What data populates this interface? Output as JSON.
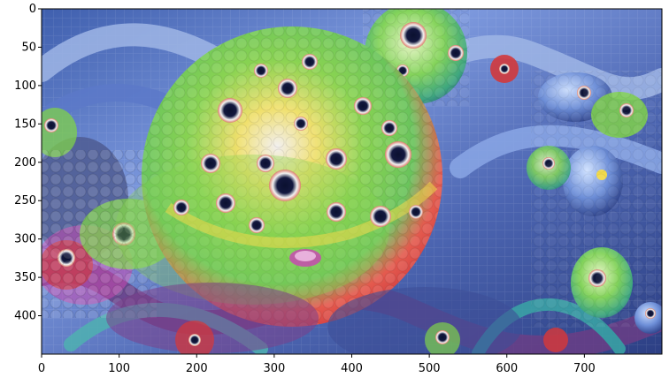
{
  "figure": {
    "image_description_icon": "deep-dream-image",
    "background": "#ffffff",
    "palette": {
      "blue_bg": "#4f6fb8",
      "light_blue": "#9fb6e6",
      "deep_blue": "#24356e",
      "green": "#7fd14a",
      "yellow": "#f1d94a",
      "red": "#d1383c",
      "magenta": "#c84ab0",
      "teal": "#3fb7b3"
    }
  },
  "axes": {
    "xlim": [
      0,
      800
    ],
    "ylim": [
      450,
      0
    ],
    "x_ticks": [
      {
        "value": 0,
        "label": "0"
      },
      {
        "value": 100,
        "label": "100"
      },
      {
        "value": 200,
        "label": "200"
      },
      {
        "value": 300,
        "label": "300"
      },
      {
        "value": 400,
        "label": "400"
      },
      {
        "value": 500,
        "label": "500"
      },
      {
        "value": 600,
        "label": "600"
      },
      {
        "value": 700,
        "label": "700"
      }
    ],
    "y_ticks": [
      {
        "value": 0,
        "label": "0"
      },
      {
        "value": 50,
        "label": "50"
      },
      {
        "value": 100,
        "label": "100"
      },
      {
        "value": 150,
        "label": "150"
      },
      {
        "value": 200,
        "label": "200"
      },
      {
        "value": 250,
        "label": "250"
      },
      {
        "value": 300,
        "label": "300"
      },
      {
        "value": 350,
        "label": "350"
      },
      {
        "value": 400,
        "label": "400"
      }
    ]
  }
}
